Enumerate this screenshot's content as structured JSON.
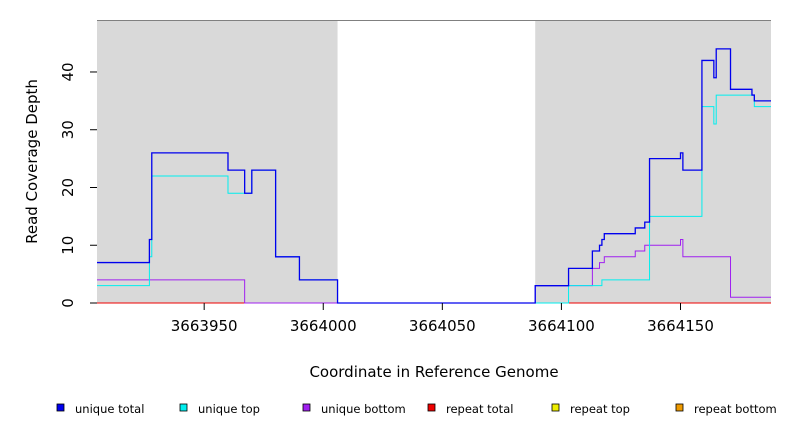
{
  "chart_data": {
    "type": "line",
    "title": "",
    "xlabel": "Coordinate in Reference Genome",
    "ylabel": "Read Coverage Depth",
    "xlim": [
      3663905,
      3664188
    ],
    "ylim": [
      0,
      49
    ],
    "x_ticks": [
      3663950,
      3664000,
      3664050,
      3664100,
      3664150
    ],
    "y_ticks": [
      0,
      10,
      20,
      30,
      40
    ],
    "grid": false,
    "legend_position": "bottom",
    "shaded_regions": [
      {
        "x_start": 3663905,
        "x_end": 3664006,
        "color": "#d9d9d9"
      },
      {
        "x_start": 3664089,
        "x_end": 3664188,
        "color": "#d9d9d9"
      }
    ],
    "series": [
      {
        "name": "unique total",
        "color": "#0000ee",
        "points": [
          [
            3663905,
            7
          ],
          [
            3663927,
            7
          ],
          [
            3663927,
            11
          ],
          [
            3663928,
            11
          ],
          [
            3663928,
            26
          ],
          [
            3663960,
            26
          ],
          [
            3663960,
            23
          ],
          [
            3663967,
            23
          ],
          [
            3663967,
            19
          ],
          [
            3663970,
            19
          ],
          [
            3663970,
            23
          ],
          [
            3663980,
            23
          ],
          [
            3663980,
            8
          ],
          [
            3663990,
            8
          ],
          [
            3663990,
            4
          ],
          [
            3664006,
            4
          ],
          [
            3664006,
            0
          ],
          [
            3664089,
            0
          ],
          [
            3664089,
            3
          ],
          [
            3664103,
            3
          ],
          [
            3664103,
            6
          ],
          [
            3664113,
            6
          ],
          [
            3664113,
            9
          ],
          [
            3664116,
            9
          ],
          [
            3664116,
            10
          ],
          [
            3664117,
            10
          ],
          [
            3664117,
            11
          ],
          [
            3664118,
            11
          ],
          [
            3664118,
            12
          ],
          [
            3664131,
            12
          ],
          [
            3664131,
            13
          ],
          [
            3664135,
            13
          ],
          [
            3664135,
            14
          ],
          [
            3664137,
            14
          ],
          [
            3664137,
            25
          ],
          [
            3664150,
            25
          ],
          [
            3664150,
            26
          ],
          [
            3664151,
            26
          ],
          [
            3664151,
            23
          ],
          [
            3664159,
            23
          ],
          [
            3664159,
            42
          ],
          [
            3664164,
            42
          ],
          [
            3664164,
            39
          ],
          [
            3664165,
            39
          ],
          [
            3664165,
            44
          ],
          [
            3664171,
            44
          ],
          [
            3664171,
            37
          ],
          [
            3664180,
            37
          ],
          [
            3664180,
            36
          ],
          [
            3664181,
            36
          ],
          [
            3664181,
            35
          ],
          [
            3664188,
            35
          ]
        ]
      },
      {
        "name": "unique top",
        "color": "#00eeee",
        "points": [
          [
            3663905,
            3
          ],
          [
            3663927,
            3
          ],
          [
            3663927,
            8
          ],
          [
            3663928,
            8
          ],
          [
            3663928,
            22
          ],
          [
            3663960,
            22
          ],
          [
            3663960,
            19
          ],
          [
            3663967,
            19
          ],
          [
            3663967,
            19
          ],
          [
            3663970,
            19
          ],
          [
            3663970,
            23
          ],
          [
            3663980,
            23
          ],
          [
            3663980,
            8
          ],
          [
            3663990,
            8
          ],
          [
            3663990,
            4
          ],
          [
            3664006,
            4
          ],
          [
            3664006,
            0
          ],
          [
            3664103,
            0
          ],
          [
            3664103,
            3
          ],
          [
            3664117,
            3
          ],
          [
            3664117,
            4
          ],
          [
            3664137,
            4
          ],
          [
            3664137,
            15
          ],
          [
            3664159,
            15
          ],
          [
            3664159,
            34
          ],
          [
            3664164,
            34
          ],
          [
            3664164,
            31
          ],
          [
            3664165,
            31
          ],
          [
            3664165,
            36
          ],
          [
            3664181,
            36
          ],
          [
            3664181,
            34
          ],
          [
            3664188,
            34
          ]
        ]
      },
      {
        "name": "unique bottom",
        "color": "#a020f0",
        "points": [
          [
            3663905,
            4
          ],
          [
            3663967,
            4
          ],
          [
            3663967,
            0
          ],
          [
            3664089,
            0
          ],
          [
            3664089,
            3
          ],
          [
            3664113,
            3
          ],
          [
            3664113,
            6
          ],
          [
            3664116,
            6
          ],
          [
            3664116,
            7
          ],
          [
            3664118,
            7
          ],
          [
            3664118,
            8
          ],
          [
            3664131,
            8
          ],
          [
            3664131,
            9
          ],
          [
            3664135,
            9
          ],
          [
            3664135,
            10
          ],
          [
            3664150,
            10
          ],
          [
            3664150,
            11
          ],
          [
            3664151,
            11
          ],
          [
            3664151,
            8
          ],
          [
            3664171,
            8
          ],
          [
            3664171,
            1
          ],
          [
            3664188,
            1
          ]
        ]
      },
      {
        "name": "repeat total",
        "color": "#ee0000",
        "points": [
          [
            3663905,
            0
          ],
          [
            3664188,
            0
          ]
        ]
      },
      {
        "name": "repeat top",
        "color": "#eeee00",
        "points": [
          [
            3663905,
            0
          ],
          [
            3664188,
            0
          ]
        ]
      },
      {
        "name": "repeat bottom",
        "color": "#ee9a00",
        "points": [
          [
            3663905,
            0
          ],
          [
            3664188,
            0
          ]
        ]
      }
    ]
  }
}
